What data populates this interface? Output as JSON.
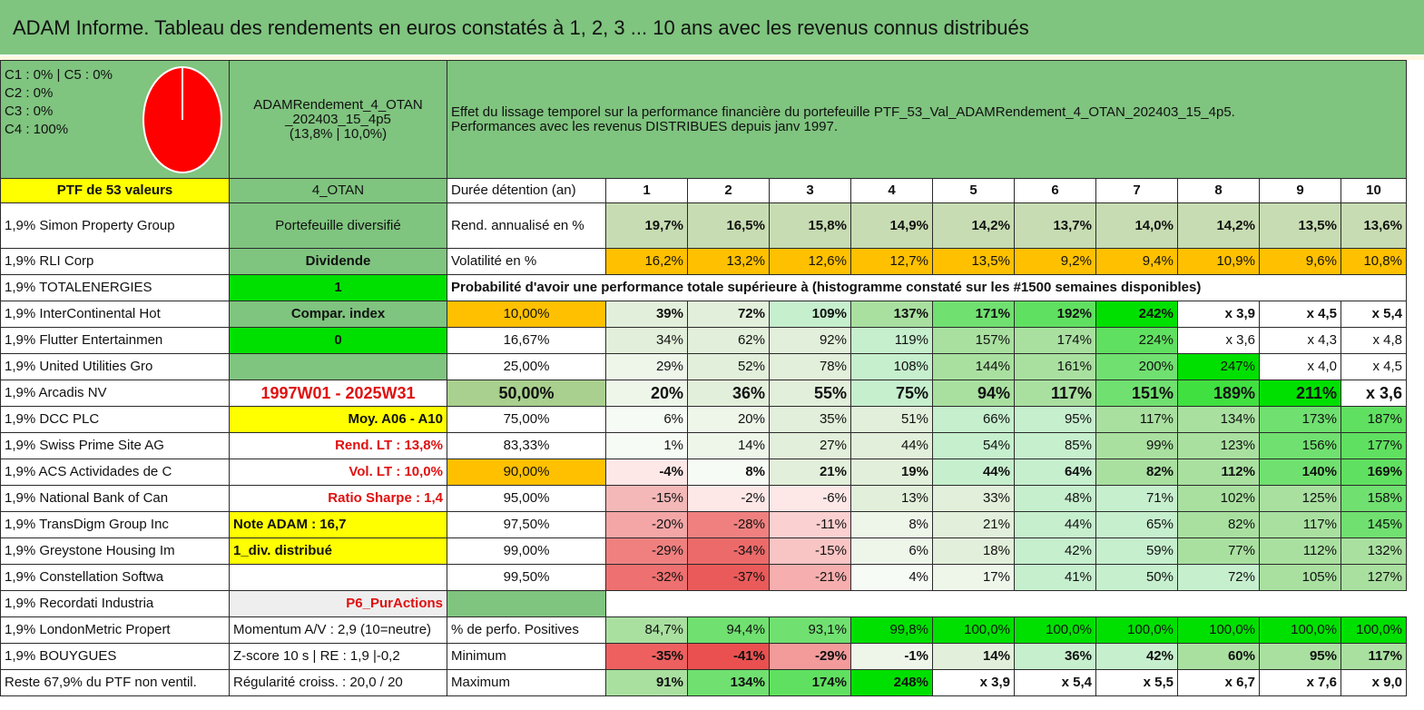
{
  "title": "ADAM Informe. Tableau des rendements en euros constatés à 1, 2, 3 ... 10 ans avec les revenus connus distribués",
  "colors": {
    "header_green": "#7fc47f",
    "yellow": "#ffff00",
    "bright_green": "#00e000",
    "orange": "#ffc000",
    "red_text": "#e01010",
    "pie_fill": "#ff0000"
  },
  "legend": {
    "lines": [
      "C1 : 0% | C5 : 0%",
      "C2 : 0%",
      "C3 : 0%",
      "C4 : 100%"
    ],
    "pie_shares": [
      0,
      0,
      0,
      1,
      0
    ]
  },
  "portfolio_box": {
    "name_lines": [
      "ADAMRendement_4_OTAN",
      "_202403_15_4p5",
      "(13,8% | 10,0%)"
    ]
  },
  "description_lines": [
    "Effet du lissage temporel sur la performance financière du portefeuille PTF_53_Val_ADAMRendement_4_OTAN_202403_15_4p5.",
    "Performances avec les revenus DISTRIBUES depuis janv 1997."
  ],
  "holdings": [
    "PTF de 53 valeurs",
    "1,9% Simon Property Group",
    "1,9% RLI Corp",
    "1,9% TOTALENERGIES",
    "1,9% InterContinental Hot",
    "1,9% Flutter Entertainmen",
    "1,9% United Utilities Gro",
    "1,9% Arcadis NV",
    "1,9% DCC PLC",
    "1,9% Swiss Prime Site AG",
    "1,9% ACS Actividades de C",
    "1,9% National Bank of Can",
    "1,9% TransDigm Group Inc",
    "1,9% Greystone Housing Im",
    "1,9% Constellation Softwa",
    "1,9% Recordati Industria",
    "1,9% LondonMetric Propert",
    "1,9% BOUYGUES",
    "Reste 67,9% du PTF non ventil."
  ],
  "info": [
    "4_OTAN",
    "Portefeuille diversifié",
    "Dividende",
    "1",
    "Compar. index",
    "0",
    "",
    "1997W01 - 2025W31",
    "Moy. A06 - A10",
    "Rend. LT : 13,8%",
    "Vol. LT : 10,0%",
    "Ratio Sharpe : 1,4",
    "Note ADAM : 16,7",
    "1_div. distribué",
    "",
    "P6_PurActions",
    "Momentum A/V : 2,9 (10=neutre)",
    "Z-score 10 s | RE : 1,9 |-0,2",
    "Régularité croiss. : 20,0 / 20"
  ],
  "table": {
    "header_label": "Durée détention (an)",
    "years": [
      "1",
      "2",
      "3",
      "4",
      "5",
      "6",
      "7",
      "8",
      "9",
      "10"
    ],
    "rend_label": "Rend. annualisé en %",
    "rend": [
      "19,7%",
      "16,5%",
      "15,8%",
      "14,9%",
      "14,2%",
      "13,7%",
      "14,0%",
      "14,2%",
      "13,5%",
      "13,6%"
    ],
    "vol_label": "Volatilité en %",
    "vol": [
      "16,2%",
      "13,2%",
      "12,6%",
      "12,7%",
      "13,5%",
      "9,2%",
      "9,4%",
      "10,9%",
      "9,6%",
      "10,8%"
    ],
    "prob_title": "Probabilité d'avoir une performance totale supérieure à (histogramme constaté sur les #1500 semaines disponibles)",
    "prob_rows": [
      {
        "p": "10,00%",
        "v": [
          "39%",
          "72%",
          "109%",
          "137%",
          "171%",
          "192%",
          "242%",
          "x 3,9",
          "x 4,5",
          "x 5,4"
        ]
      },
      {
        "p": "16,67%",
        "v": [
          "34%",
          "62%",
          "92%",
          "119%",
          "157%",
          "174%",
          "224%",
          "x 3,6",
          "x 4,3",
          "x 4,8"
        ]
      },
      {
        "p": "25,00%",
        "v": [
          "29%",
          "52%",
          "78%",
          "108%",
          "144%",
          "161%",
          "200%",
          "247%",
          "x 4,0",
          "x 4,5"
        ]
      },
      {
        "p": "50,00%",
        "v": [
          "20%",
          "36%",
          "55%",
          "75%",
          "94%",
          "117%",
          "151%",
          "189%",
          "211%",
          "x 3,6"
        ]
      },
      {
        "p": "75,00%",
        "v": [
          "6%",
          "20%",
          "35%",
          "51%",
          "66%",
          "95%",
          "117%",
          "134%",
          "173%",
          "187%"
        ]
      },
      {
        "p": "83,33%",
        "v": [
          "1%",
          "14%",
          "27%",
          "44%",
          "54%",
          "85%",
          "99%",
          "123%",
          "156%",
          "177%"
        ]
      },
      {
        "p": "90,00%",
        "v": [
          "-4%",
          "8%",
          "21%",
          "19%",
          "44%",
          "64%",
          "82%",
          "112%",
          "140%",
          "169%"
        ]
      },
      {
        "p": "95,00%",
        "v": [
          "-15%",
          "-2%",
          "-6%",
          "13%",
          "33%",
          "48%",
          "71%",
          "102%",
          "125%",
          "158%"
        ]
      },
      {
        "p": "97,50%",
        "v": [
          "-20%",
          "-28%",
          "-11%",
          "8%",
          "21%",
          "44%",
          "65%",
          "82%",
          "117%",
          "145%"
        ]
      },
      {
        "p": "99,00%",
        "v": [
          "-29%",
          "-34%",
          "-15%",
          "6%",
          "18%",
          "42%",
          "59%",
          "77%",
          "112%",
          "132%"
        ]
      },
      {
        "p": "99,50%",
        "v": [
          "-32%",
          "-37%",
          "-21%",
          "4%",
          "17%",
          "41%",
          "50%",
          "72%",
          "105%",
          "127%"
        ]
      }
    ],
    "pos_label": "% de perfo. Positives",
    "pos": [
      "84,7%",
      "94,4%",
      "93,1%",
      "99,8%",
      "100,0%",
      "100,0%",
      "100,0%",
      "100,0%",
      "100,0%",
      "100,0%"
    ],
    "min_label": "Minimum",
    "min": [
      "-35%",
      "-41%",
      "-29%",
      "-1%",
      "14%",
      "36%",
      "42%",
      "60%",
      "95%",
      "117%"
    ],
    "max_label": "Maximum",
    "max": [
      "91%",
      "134%",
      "174%",
      "248%",
      "x 3,9",
      "x 5,4",
      "x 5,5",
      "x 6,7",
      "x 7,6",
      "x 9,0"
    ]
  }
}
